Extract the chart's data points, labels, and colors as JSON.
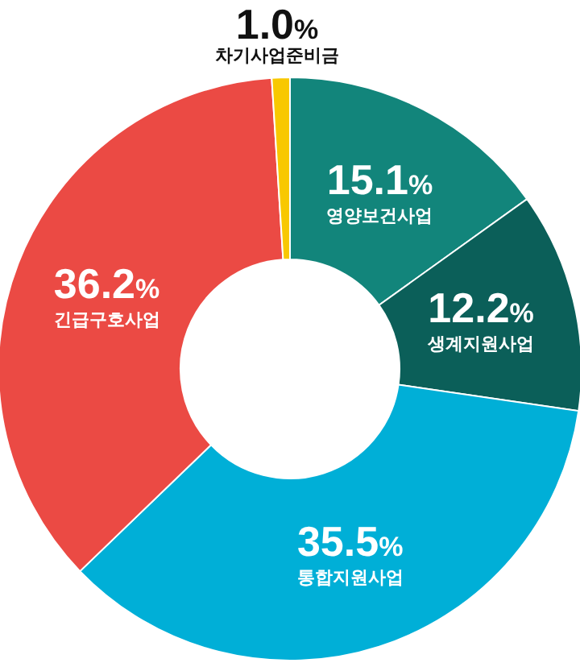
{
  "chart_data": {
    "type": "donut",
    "categories": [
      "영양보건사업",
      "생계지원사업",
      "통합지원사업",
      "긴급구호사업",
      "차기사업준비금"
    ],
    "values": [
      15.1,
      12.2,
      35.5,
      36.2,
      1.0
    ],
    "colors": [
      "#12857b",
      "#0b5f59",
      "#00afd7",
      "#eb4a44",
      "#f8c800"
    ],
    "value_labels": [
      "15.1%",
      "12.2%",
      "35.5%",
      "36.2%",
      "1.0%"
    ]
  }
}
